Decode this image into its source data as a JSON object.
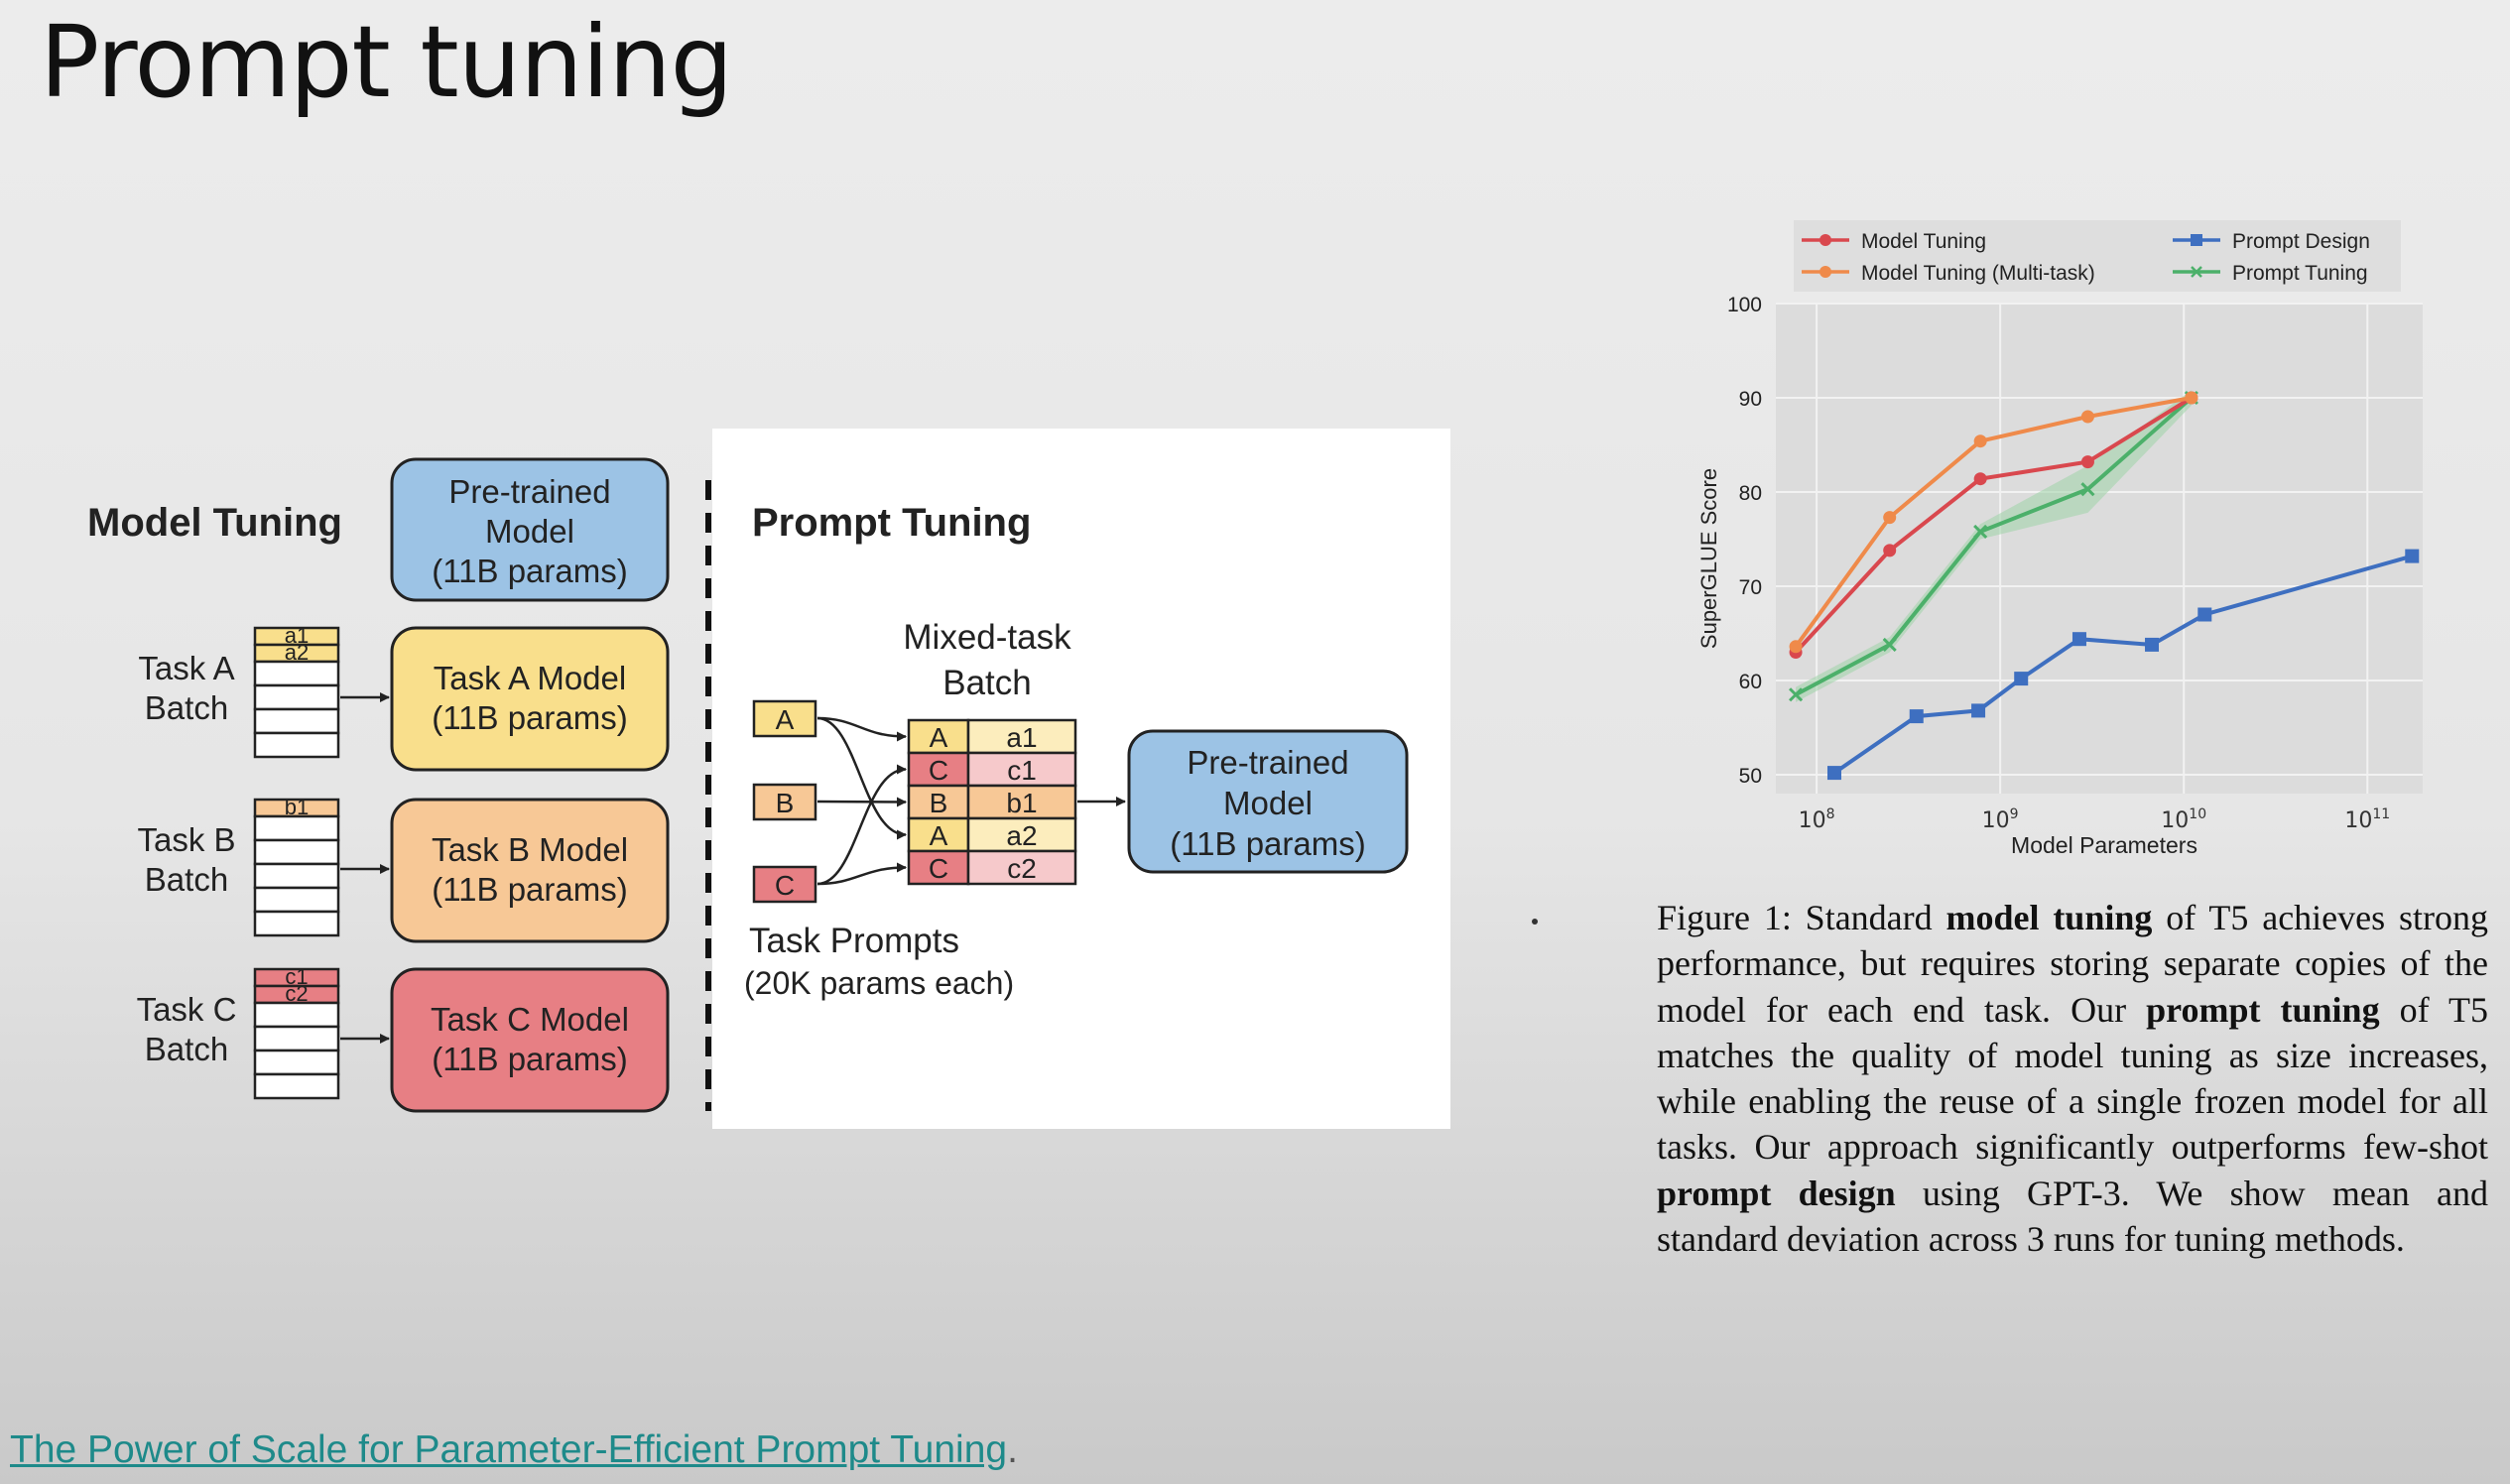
{
  "slide": {
    "title": "Prompt tuning"
  },
  "diagram": {
    "model_tuning": {
      "heading": "Model Tuning",
      "pretrained_box": [
        "Pre-trained",
        "Model",
        "(11B params)"
      ],
      "tasks": [
        {
          "label": [
            "Task A",
            "Batch"
          ],
          "rows": [
            "a1",
            "a2"
          ],
          "model": [
            "Task A Model",
            "(11B params)"
          ],
          "color": "#f9df8c"
        },
        {
          "label": [
            "Task B",
            "Batch"
          ],
          "rows": [
            "b1"
          ],
          "model": [
            "Task B Model",
            "(11B params)"
          ],
          "color": "#f7c896"
        },
        {
          "label": [
            "Task C",
            "Batch"
          ],
          "rows": [
            "c1",
            "c2"
          ],
          "model": [
            "Task C Model",
            "(11B params)"
          ],
          "color": "#e77f84"
        }
      ]
    },
    "prompt_tuning": {
      "heading": "Prompt Tuning",
      "prompts": [
        "A",
        "B",
        "C"
      ],
      "mixed_batch_label": [
        "Mixed-task",
        "Batch"
      ],
      "mixed_rows": [
        [
          "A",
          "a1"
        ],
        [
          "C",
          "c1"
        ],
        [
          "B",
          "b1"
        ],
        [
          "A",
          "a2"
        ],
        [
          "C",
          "c2"
        ]
      ],
      "task_prompts_label": [
        "Task Prompts",
        "(20K params each)"
      ],
      "pretrained_box": [
        "Pre-trained",
        "Model",
        "(11B params)"
      ]
    },
    "colors": {
      "blue_box": "#9cc3e5",
      "yellow": "#f9df8c",
      "orange": "#f7c896",
      "red": "#e77f84",
      "pink_light": "#f6c9cb",
      "yellow_light": "#fcedbd"
    }
  },
  "chart_data": {
    "type": "line",
    "title": "",
    "xlabel": "Model Parameters",
    "ylabel": "SuperGLUE Score",
    "xscale": "log",
    "xlim": [
      60000000,
      200000000000
    ],
    "ylim": [
      48,
      100
    ],
    "yticks": [
      50,
      60,
      70,
      80,
      90,
      100
    ],
    "xticks": [
      {
        "value": 100000000,
        "label": "10",
        "exp": "8"
      },
      {
        "value": 1000000000,
        "label": "10",
        "exp": "9"
      },
      {
        "value": 10000000000,
        "label": "10",
        "exp": "10"
      },
      {
        "value": 100000000000,
        "label": "10",
        "exp": "11"
      }
    ],
    "legend_position": "top",
    "grid": true,
    "series": [
      {
        "name": "Model Tuning",
        "color": "#d9484e",
        "marker": "circle",
        "x": [
          77000000,
          250000000,
          780000000,
          3000000000,
          11000000000
        ],
        "y": [
          63,
          73.8,
          81.4,
          83.2,
          90
        ]
      },
      {
        "name": "Model Tuning (Multi-task)",
        "color": "#ef8a4a",
        "marker": "circle",
        "x": [
          77000000,
          250000000,
          780000000,
          3000000000,
          11000000000
        ],
        "y": [
          63.6,
          77.3,
          85.4,
          88,
          90
        ]
      },
      {
        "name": "Prompt Design",
        "color": "#3e6fc0",
        "marker": "square",
        "x": [
          125000000,
          350000000,
          760000000,
          1300000000,
          2700000000,
          6700000000,
          13000000000,
          175000000000
        ],
        "y": [
          50.2,
          56.2,
          56.8,
          60.2,
          64.4,
          63.8,
          67,
          73.2
        ]
      },
      {
        "name": "Prompt Tuning",
        "color": "#4cb06a",
        "marker": "x",
        "x": [
          77000000,
          250000000,
          780000000,
          3000000000,
          11000000000
        ],
        "y": [
          58.5,
          63.8,
          75.8,
          80.3,
          90
        ]
      }
    ]
  },
  "caption": {
    "p1": "Figure 1: Standard ",
    "b1": "model tuning",
    "p2": " of T5 achieves strong performance, but requires storing separate copies of the model for each end task.  Our ",
    "b2": "prompt tuning",
    "p3": " of T5 matches the quality of model tuning as size increases, while enabling the reuse of a single frozen model for all tasks. Our approach significantly outperforms few-shot ",
    "b3": "prompt design",
    "p4": " using GPT-3. We show mean and standard deviation across 3 runs for tuning methods."
  },
  "footer": {
    "link_text": "The Power of Scale for Parameter-Efficient Prompt Tuning",
    "suffix": "."
  }
}
